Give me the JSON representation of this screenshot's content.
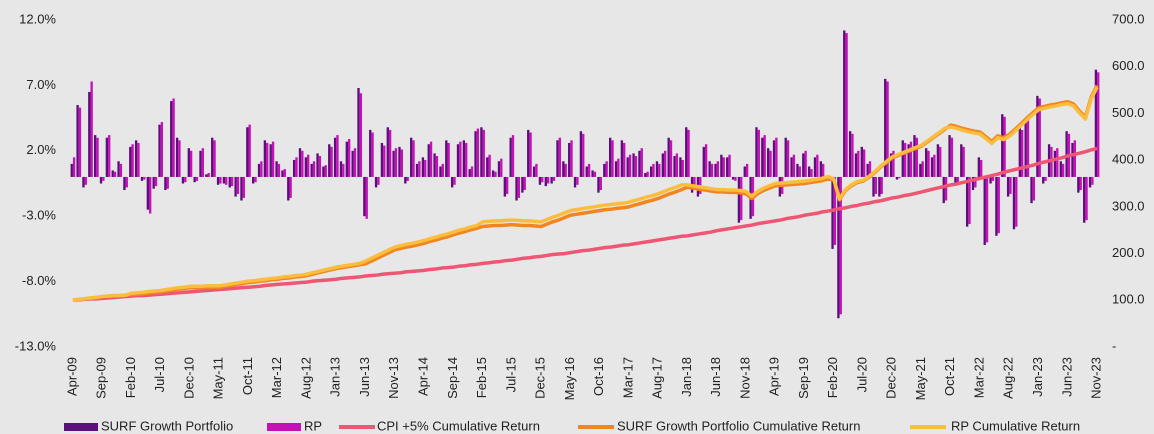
{
  "chart_data": {
    "type": "combo",
    "categories": [
      "Apr-09",
      null,
      null,
      null,
      null,
      "Sep-09",
      null,
      null,
      null,
      null,
      "Feb-10",
      null,
      null,
      null,
      null,
      "Jul-10",
      null,
      null,
      null,
      null,
      "Dec-10",
      null,
      null,
      null,
      null,
      "May-11",
      null,
      null,
      null,
      null,
      "Oct-11",
      null,
      null,
      null,
      null,
      "Mar-12",
      null,
      null,
      null,
      null,
      "Aug-12",
      null,
      null,
      null,
      null,
      "Jan-13",
      null,
      null,
      null,
      null,
      "Jun-13",
      null,
      null,
      null,
      null,
      "Nov-13",
      null,
      null,
      null,
      null,
      "Apr-14",
      null,
      null,
      null,
      null,
      "Sep-14",
      null,
      null,
      null,
      null,
      "Feb-15",
      null,
      null,
      null,
      null,
      "Jul-15",
      null,
      null,
      null,
      null,
      "Dec-15",
      null,
      null,
      null,
      null,
      "May-16",
      null,
      null,
      null,
      null,
      "Oct-16",
      null,
      null,
      null,
      null,
      "Mar-17",
      null,
      null,
      null,
      null,
      "Aug-17",
      null,
      null,
      null,
      null,
      "Jan-18",
      null,
      null,
      null,
      null,
      "Jun-18",
      null,
      null,
      null,
      null,
      "Nov-18",
      null,
      null,
      null,
      null,
      "Apr-19",
      null,
      null,
      null,
      null,
      "Sep-19",
      null,
      null,
      null,
      null,
      "Feb-20",
      null,
      null,
      null,
      null,
      "Jul-20",
      null,
      null,
      null,
      null,
      "Dec-20",
      null,
      null,
      null,
      null,
      "May-21",
      null,
      null,
      null,
      null,
      "Oct-21",
      null,
      null,
      null,
      null,
      "Mar-22",
      null,
      null,
      null,
      null,
      "Aug-22",
      null,
      null,
      null,
      null,
      "Jan-23",
      null,
      null,
      null,
      null,
      "Jun-23",
      null,
      null,
      null,
      null,
      "Nov-23"
    ],
    "ylim": [
      -13,
      12
    ],
    "yticks": [
      {
        "value": -13,
        "label": "-13.0%"
      },
      {
        "value": -8,
        "label": "-8.0%"
      },
      {
        "value": -3,
        "label": "-3.0%"
      },
      {
        "value": 2,
        "label": "2.0%"
      },
      {
        "value": 7,
        "label": "7.0%"
      },
      {
        "value": 12,
        "label": "12.0%"
      }
    ],
    "y2lim": [
      0,
      700
    ],
    "y2ticks": [
      {
        "value": 0,
        "label": "-"
      },
      {
        "value": 100,
        "label": "100.0"
      },
      {
        "value": 200,
        "label": "200.0"
      },
      {
        "value": 300,
        "label": "300.0"
      },
      {
        "value": 400,
        "label": "400.0"
      },
      {
        "value": 500,
        "label": "500.0"
      },
      {
        "value": 600,
        "label": "600.0"
      },
      {
        "value": 700,
        "label": "700.0"
      }
    ],
    "series": [
      {
        "name": "SURF Growth Portfolio",
        "type": "bar",
        "color": "#5b0f7a",
        "values": [
          1.0,
          5.5,
          -0.8,
          6.5,
          3.2,
          -0.5,
          3.0,
          0.5,
          1.2,
          -1.0,
          2.3,
          2.8,
          -0.3,
          -2.5,
          -0.9,
          4.0,
          -1.0,
          5.8,
          3.0,
          -0.5,
          2.2,
          -0.4,
          2.0,
          0.2,
          3.0,
          -0.6,
          -0.5,
          -0.8,
          -1.5,
          -1.8,
          3.8,
          -0.5,
          1.0,
          2.8,
          2.5,
          1.2,
          0.5,
          -1.8,
          1.3,
          2.2,
          1.5,
          1.0,
          1.8,
          0.8,
          2.5,
          3.0,
          1.2,
          2.7,
          2.0,
          6.8,
          -3.0,
          3.6,
          -0.8,
          2.6,
          3.8,
          2.0,
          2.3,
          -0.5,
          3.0,
          1.0,
          1.5,
          2.5,
          1.8,
          0.8,
          2.8,
          -0.8,
          2.5,
          2.8,
          0.6,
          3.5,
          3.8,
          1.5,
          0.5,
          1.2,
          -1.5,
          3.0,
          -1.8,
          -1.2,
          3.6,
          0.8,
          -0.6,
          -0.7,
          -0.5,
          2.8,
          1.2,
          2.6,
          -0.8,
          3.5,
          0.8,
          0.5,
          -1.2,
          1.0,
          3.0,
          1.2,
          2.8,
          1.5,
          1.8,
          2.0,
          0.3,
          0.8,
          1.2,
          1.8,
          3.0,
          1.6,
          1.5,
          3.8,
          -1.2,
          -1.5,
          2.3,
          1.2,
          1.0,
          1.7,
          1.5,
          -0.2,
          -3.5,
          0.8,
          -3.2,
          3.8,
          3.0,
          2.2,
          2.8,
          -1.5,
          3.0,
          1.5,
          1.0,
          1.8,
          0.8,
          1.5,
          1.2,
          -0.2,
          -5.5,
          -10.8,
          11.2,
          3.5,
          1.8,
          2.3,
          1.0,
          -1.5,
          -1.5,
          7.5,
          1.8,
          -0.2,
          2.8,
          2.5,
          3.2,
          1.0,
          2.2,
          1.5,
          2.5,
          -2.0,
          3.2,
          -0.6,
          2.5,
          -3.8,
          -1.0,
          1.5,
          -5.2,
          -0.5,
          -4.5,
          4.8,
          -1.5,
          -4.0,
          3.8,
          4.5,
          -2.0,
          6.2,
          -0.5,
          2.5,
          2.0,
          1.2,
          3.5,
          2.6,
          -1.2,
          -3.5,
          -0.8,
          8.2
        ]
      },
      {
        "name": "RP",
        "type": "bar",
        "color": "#c710b8",
        "values": [
          1.5,
          5.3,
          -0.6,
          7.3,
          3.0,
          -0.3,
          3.2,
          0.4,
          1.0,
          -0.8,
          2.5,
          2.6,
          -0.2,
          -2.8,
          -0.7,
          4.2,
          -0.9,
          6.0,
          2.8,
          -0.4,
          2.0,
          -0.3,
          2.2,
          0.3,
          2.8,
          -0.5,
          -0.6,
          -0.7,
          -1.3,
          -1.6,
          4.0,
          -0.4,
          1.2,
          2.6,
          2.7,
          1.0,
          0.6,
          -1.6,
          1.5,
          2.0,
          1.7,
          1.2,
          1.6,
          0.9,
          2.3,
          3.2,
          1.0,
          2.9,
          2.2,
          6.4,
          -3.2,
          3.4,
          -0.6,
          2.4,
          3.6,
          2.2,
          2.1,
          -0.3,
          2.8,
          1.2,
          1.3,
          2.7,
          1.6,
          1.0,
          2.6,
          -0.6,
          2.7,
          2.6,
          0.8,
          3.7,
          3.6,
          1.7,
          0.4,
          1.4,
          -1.3,
          3.2,
          -1.6,
          -1.0,
          3.4,
          1.0,
          -0.4,
          -0.5,
          -0.3,
          3.0,
          1.0,
          2.8,
          -0.6,
          3.3,
          1.0,
          0.4,
          -1.0,
          1.2,
          2.8,
          1.4,
          2.6,
          1.7,
          1.6,
          2.2,
          0.4,
          1.0,
          1.0,
          2.0,
          2.8,
          1.8,
          1.3,
          3.6,
          -1.0,
          -1.3,
          2.5,
          1.0,
          1.2,
          1.5,
          1.7,
          -0.3,
          -3.3,
          1.0,
          -3.0,
          3.6,
          3.2,
          2.0,
          3.0,
          -1.3,
          2.8,
          1.7,
          0.8,
          2.0,
          0.6,
          1.7,
          1.0,
          -0.3,
          -5.2,
          -10.5,
          11.0,
          3.3,
          2.0,
          2.1,
          1.2,
          -1.3,
          -1.3,
          7.3,
          2.0,
          -0.1,
          2.6,
          2.7,
          3.0,
          1.2,
          2.0,
          1.7,
          2.3,
          -1.8,
          3.0,
          -0.4,
          2.3,
          -3.6,
          -0.8,
          1.3,
          -5.0,
          -0.3,
          -4.3,
          4.6,
          -1.3,
          -3.8,
          3.6,
          4.3,
          -1.8,
          6.0,
          -0.3,
          2.3,
          2.2,
          1.0,
          3.3,
          2.8,
          -1.0,
          -3.3,
          -0.6,
          8.0
        ]
      },
      {
        "name": "CPI +5% Cumulative Return",
        "type": "line",
        "axis": "y2",
        "color": "#ee5673",
        "values": [
          100,
          101,
          102,
          103,
          103,
          104,
          105,
          106,
          107,
          108,
          109,
          110,
          110,
          111,
          112,
          113,
          114,
          115,
          116,
          117,
          118,
          119,
          120,
          121,
          122,
          123,
          124,
          125,
          126,
          127,
          128,
          129,
          130,
          132,
          133,
          134,
          135,
          136,
          137,
          138,
          139,
          141,
          142,
          143,
          144,
          145,
          147,
          148,
          149,
          150,
          152,
          153,
          154,
          156,
          157,
          158,
          159,
          161,
          162,
          163,
          164,
          166,
          167,
          169,
          170,
          171,
          173,
          174,
          176,
          177,
          179,
          180,
          182,
          183,
          185,
          186,
          188,
          190,
          191,
          193,
          194,
          196,
          198,
          199,
          200,
          202,
          204,
          206,
          207,
          209,
          211,
          213,
          214,
          216,
          218,
          219,
          221,
          223,
          225,
          227,
          229,
          231,
          233,
          235,
          237,
          238,
          240,
          242,
          244,
          246,
          249,
          251,
          253,
          255,
          257,
          259,
          261,
          264,
          266,
          268,
          270,
          272,
          275,
          277,
          279,
          282,
          284,
          286,
          289,
          291,
          293,
          296,
          298,
          301,
          303,
          306,
          308,
          311,
          313,
          316,
          319,
          321,
          324,
          326,
          329,
          332,
          335,
          338,
          341,
          344,
          347,
          349,
          352,
          355,
          358,
          361,
          364,
          367,
          370,
          374,
          377,
          380,
          383,
          386,
          389,
          393,
          396,
          399,
          402,
          405,
          409,
          412,
          415,
          418,
          422,
          425
        ]
      },
      {
        "name": "SURF Growth Portfolio Cumulative Return",
        "type": "line",
        "axis": "y2",
        "color": "#f28520",
        "values": [
          100,
          102,
          103,
          105,
          106,
          108,
          109,
          110,
          110,
          111,
          112,
          113,
          114,
          116,
          117,
          118,
          120,
          122,
          124,
          125,
          127,
          127,
          127,
          128,
          128,
          128,
          130,
          132,
          134,
          136,
          138,
          139,
          141,
          142,
          144,
          145,
          147,
          148,
          150,
          151,
          153,
          156,
          159,
          162,
          165,
          168,
          170,
          172,
          174,
          176,
          178,
          184,
          190,
          196,
          202,
          208,
          211,
          214,
          216,
          219,
          222,
          226,
          229,
          233,
          236,
          240,
          244,
          247,
          251,
          254,
          258,
          259,
          260,
          260,
          261,
          262,
          261,
          260,
          260,
          259,
          258,
          263,
          268,
          272,
          277,
          282,
          284,
          286,
          288,
          290,
          292,
          294,
          295,
          297,
          298,
          300,
          304,
          307,
          311,
          314,
          318,
          323,
          328,
          332,
          337,
          342,
          340,
          338,
          336,
          334,
          332,
          332,
          331,
          331,
          330,
          328,
          318,
          328,
          335,
          340,
          345,
          346,
          347,
          348,
          349,
          350,
          352,
          354,
          356,
          360,
          358,
          315,
          335,
          345,
          352,
          355,
          363,
          373,
          385,
          395,
          405,
          410,
          415,
          420,
          425,
          430,
          439,
          448,
          457,
          466,
          475,
          472,
          468,
          465,
          462,
          460,
          450,
          440,
          452,
          448,
          455,
          466,
          478,
          490,
          501,
          512,
          515,
          518,
          520,
          523,
          525,
          520,
          505,
          492,
          535,
          560
        ]
      },
      {
        "name": "RP Cumulative Return",
        "type": "line",
        "axis": "y2",
        "color": "#fbbd3e",
        "values": [
          100,
          102,
          103,
          105,
          106,
          108,
          109,
          110,
          110,
          111,
          115,
          116,
          117,
          119,
          120,
          121,
          123,
          125,
          127,
          128,
          130,
          130,
          130,
          131,
          131,
          131,
          133,
          135,
          137,
          139,
          141,
          142,
          144,
          145,
          147,
          148,
          150,
          151,
          153,
          154,
          156,
          159,
          162,
          165,
          168,
          171,
          173,
          175,
          177,
          179,
          184,
          190,
          196,
          202,
          208,
          214,
          217,
          220,
          222,
          225,
          228,
          232,
          235,
          239,
          242,
          246,
          250,
          253,
          257,
          260,
          268,
          269,
          270,
          270,
          271,
          272,
          271,
          270,
          270,
          269,
          268,
          273,
          278,
          282,
          287,
          292,
          294,
          296,
          298,
          300,
          302,
          304,
          305,
          307,
          308,
          310,
          314,
          317,
          321,
          324,
          328,
          333,
          338,
          342,
          347,
          347,
          345,
          343,
          341,
          339,
          337,
          337,
          336,
          336,
          335,
          333,
          323,
          333,
          340,
          345,
          350,
          351,
          352,
          353,
          354,
          355,
          357,
          359,
          361,
          365,
          360,
          317,
          337,
          347,
          354,
          357,
          365,
          375,
          387,
          397,
          407,
          412,
          417,
          422,
          427,
          432,
          441,
          450,
          459,
          468,
          471,
          468,
          464,
          461,
          458,
          456,
          446,
          436,
          448,
          444,
          451,
          462,
          474,
          486,
          497,
          508,
          511,
          514,
          516,
          519,
          521,
          516,
          501,
          488,
          531,
          556
        ]
      }
    ]
  }
}
